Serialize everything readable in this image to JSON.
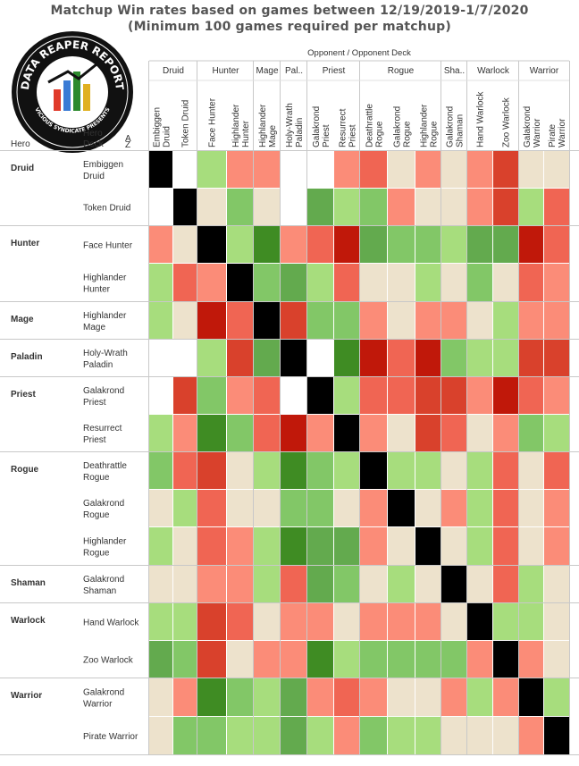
{
  "title_line1": "Matchup Win rates based on games between 12/19/2019-1/7/2020",
  "title_line2": "(Minimum 100 games required per matchup)",
  "header": {
    "opponent_label": "Opponent  /  Opponent Deck",
    "hero_label": "Hero",
    "hero_deck_label": "Hero Deck",
    "sort_glyph": "A Z"
  },
  "logo": {
    "text_top": "DATA REAPER REPORT",
    "text_bottom": "VICIOUS SYNDICATE PRESENTS"
  },
  "colors": {
    "strong_win": "#c0180a",
    "good_win": "#d9412c",
    "win": "#f06553",
    "slight_win": "#fb8c78",
    "even": "#ede2cc",
    "slight_loss": "#a7dd7d",
    "loss": "#82c767",
    "good_loss": "#63aa4e",
    "strong_loss": "#3f8c23",
    "mirror": "#000000",
    "no_data": "#ffffff"
  },
  "chart_data": {
    "type": "heatmap",
    "title": "Matchup Win rates based on games between 12/19/2019-1/7/2020",
    "subtitle": "(Minimum 100 games required per matchup)",
    "value_scale": "cell color = hero deck win-rate category vs opponent deck (red = favored, green = unfavored, beige = even, black = mirror, white = insufficient data)",
    "col_groups": [
      {
        "hero": "Druid",
        "decks": [
          "Embiggen Druid",
          "Token Druid"
        ]
      },
      {
        "hero": "Hunter",
        "decks": [
          "Face Hunter",
          "Highlander Hunter"
        ]
      },
      {
        "hero": "Mage",
        "decks": [
          "Highlander Mage"
        ]
      },
      {
        "hero": "Pal..",
        "decks": [
          "Holy-Wrath Paladin"
        ]
      },
      {
        "hero": "Priest",
        "decks": [
          "Galakrond Priest",
          "Resurrect Priest"
        ]
      },
      {
        "hero": "Rogue",
        "decks": [
          "Deathrattle Rogue",
          "Galakrond Rogue",
          "Highlander Rogue"
        ]
      },
      {
        "hero": "Sha..",
        "decks": [
          "Galakrond Shaman"
        ]
      },
      {
        "hero": "Warlock",
        "decks": [
          "Hand Warlock",
          "Zoo Warlock"
        ]
      },
      {
        "hero": "Warrior",
        "decks": [
          "Galakrond Warrior",
          "Pirate Warrior"
        ]
      }
    ],
    "row_groups": [
      {
        "hero": "Druid",
        "decks": [
          "Embiggen Druid",
          "Token Druid"
        ]
      },
      {
        "hero": "Hunter",
        "decks": [
          "Face Hunter",
          "Highlander Hunter"
        ]
      },
      {
        "hero": "Mage",
        "decks": [
          "Highlander Mage"
        ]
      },
      {
        "hero": "Paladin",
        "decks": [
          "Holy-Wrath Paladin"
        ]
      },
      {
        "hero": "Priest",
        "decks": [
          "Galakrond Priest",
          "Resurrect Priest"
        ]
      },
      {
        "hero": "Rogue",
        "decks": [
          "Deathrattle Rogue",
          "Galakrond Rogue",
          "Highlander Rogue"
        ]
      },
      {
        "hero": "Shaman",
        "decks": [
          "Galakrond Shaman"
        ]
      },
      {
        "hero": "Warlock",
        "decks": [
          "Hand Warlock",
          "Zoo Warlock"
        ]
      },
      {
        "hero": "Warrior",
        "decks": [
          "Galakrond Warrior",
          "Pirate Warrior"
        ]
      }
    ],
    "cells": [
      [
        "K",
        "N",
        "l",
        "p",
        "p",
        "N",
        "N",
        "p",
        "W",
        "E",
        "p",
        "E",
        "p",
        "w",
        "E",
        "E"
      ],
      [
        "N",
        "K",
        "E",
        "L",
        "E",
        "N",
        "G",
        "l",
        "L",
        "p",
        "E",
        "E",
        "p",
        "w",
        "l",
        "W"
      ],
      [
        "p",
        "E",
        "K",
        "l",
        "S",
        "p",
        "W",
        "R",
        "G",
        "L",
        "L",
        "l",
        "G",
        "G",
        "R",
        "W"
      ],
      [
        "l",
        "W",
        "p",
        "K",
        "L",
        "G",
        "l",
        "W",
        "E",
        "E",
        "l",
        "E",
        "L",
        "E",
        "W",
        "p"
      ],
      [
        "l",
        "E",
        "R",
        "W",
        "K",
        "w",
        "L",
        "L",
        "p",
        "E",
        "p",
        "p",
        "E",
        "l",
        "p",
        "p"
      ],
      [
        "N",
        "N",
        "l",
        "w",
        "G",
        "K",
        "N",
        "S",
        "R",
        "W",
        "R",
        "L",
        "l",
        "l",
        "w",
        "w"
      ],
      [
        "N",
        "w",
        "L",
        "p",
        "W",
        "N",
        "K",
        "l",
        "W",
        "W",
        "w",
        "w",
        "p",
        "R",
        "W",
        "p"
      ],
      [
        "l",
        "p",
        "S",
        "L",
        "W",
        "R",
        "p",
        "K",
        "p",
        "E",
        "w",
        "W",
        "E",
        "p",
        "L",
        "l"
      ],
      [
        "L",
        "W",
        "w",
        "E",
        "l",
        "S",
        "L",
        "l",
        "K",
        "l",
        "l",
        "E",
        "l",
        "W",
        "E",
        "W"
      ],
      [
        "E",
        "l",
        "W",
        "E",
        "E",
        "L",
        "L",
        "E",
        "p",
        "K",
        "E",
        "p",
        "l",
        "W",
        "E",
        "p"
      ],
      [
        "l",
        "E",
        "W",
        "p",
        "l",
        "S",
        "G",
        "G",
        "p",
        "E",
        "K",
        "E",
        "l",
        "W",
        "E",
        "p"
      ],
      [
        "E",
        "E",
        "p",
        "p",
        "l",
        "W",
        "G",
        "L",
        "E",
        "l",
        "E",
        "K",
        "E",
        "W",
        "l",
        "E"
      ],
      [
        "l",
        "l",
        "w",
        "W",
        "E",
        "p",
        "p",
        "E",
        "p",
        "p",
        "p",
        "E",
        "K",
        "l",
        "l",
        "E"
      ],
      [
        "G",
        "L",
        "w",
        "E",
        "p",
        "p",
        "S",
        "l",
        "L",
        "L",
        "L",
        "L",
        "p",
        "K",
        "p",
        "E"
      ],
      [
        "E",
        "p",
        "S",
        "L",
        "l",
        "G",
        "p",
        "W",
        "p",
        "E",
        "E",
        "p",
        "l",
        "p",
        "K",
        "l"
      ],
      [
        "E",
        "L",
        "L",
        "l",
        "l",
        "G",
        "l",
        "p",
        "L",
        "l",
        "l",
        "E",
        "E",
        "E",
        "p",
        "K"
      ]
    ],
    "legend": {
      "R": "strong_win",
      "w": "good_win",
      "W": "win",
      "p": "slight_win",
      "E": "even",
      "l": "slight_loss",
      "L": "loss",
      "G": "good_loss",
      "S": "strong_loss",
      "K": "mirror",
      "N": "no_data"
    }
  }
}
